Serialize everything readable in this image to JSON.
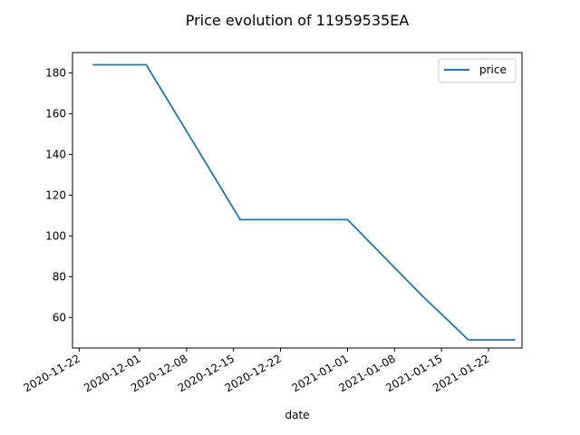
{
  "chart_data": {
    "type": "line",
    "title": "Price evolution of 11959535EA",
    "xlabel": "date",
    "ylabel": "",
    "legend": {
      "placement": "top-right"
    },
    "grid": false,
    "xlim": [
      "2020-11-21",
      "2021-01-27"
    ],
    "ylim": [
      45,
      190
    ],
    "x_ticks": [
      "2020-11-22",
      "2020-12-01",
      "2020-12-08",
      "2020-12-15",
      "2020-12-22",
      "2021-01-01",
      "2021-01-08",
      "2021-01-15",
      "2021-01-22"
    ],
    "y_ticks": [
      60,
      80,
      100,
      120,
      140,
      160,
      180
    ],
    "series": [
      {
        "name": "price",
        "color": "#1f77b4",
        "x": [
          "2020-11-24",
          "2020-12-02",
          "2020-12-16",
          "2021-01-01",
          "2021-01-12",
          "2021-01-19",
          "2021-01-26"
        ],
        "y": [
          184,
          184,
          108,
          108,
          71,
          49,
          49
        ]
      }
    ]
  }
}
